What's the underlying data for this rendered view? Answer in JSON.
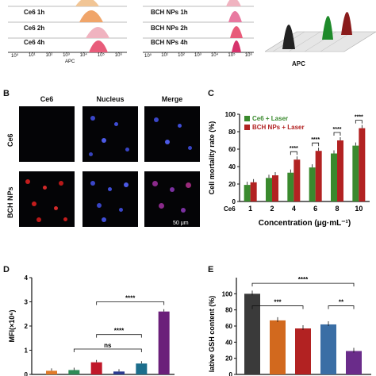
{
  "panel_A": {
    "hist1_labels": [
      "Ce6 1h",
      "Ce6 2h",
      "Ce6 4h"
    ],
    "hist2_labels": [
      "BCH NPs 1h",
      "BCH NPs 2h",
      "BCH NPs 4h"
    ],
    "x_ticks": [
      "10⁰",
      "10¹",
      "10²",
      "10³",
      "10⁴",
      "10⁵",
      "10⁶"
    ],
    "xlabel_small": "APC",
    "xlabel_3d": "APC",
    "colors": [
      "#f1c595",
      "#f0a56a",
      "#e85c7a",
      "#222222",
      "#1e8a2a",
      "#8a1b1b"
    ]
  },
  "panel_B": {
    "label": "B",
    "col_titles": [
      "Ce6",
      "Nucleus",
      "Merge"
    ],
    "row_labels": [
      "Ce6",
      "BCH NPs"
    ],
    "scale_bar": "50 μm"
  },
  "chart_data": [
    {
      "panel": "C",
      "type": "bar",
      "ylabel": "Cell mortality rate (%)",
      "xlabel": "Concentration (μg·mL⁻¹)",
      "x_prefix": "Ce6",
      "categories": [
        "1",
        "2",
        "4",
        "6",
        "8",
        "10"
      ],
      "ylim": [
        0,
        100
      ],
      "yticks": [
        0,
        20,
        40,
        60,
        80,
        100
      ],
      "series": [
        {
          "name": "Ce6 + Laser",
          "color": "#3a8a2e",
          "values": [
            19,
            27,
            33,
            39,
            55,
            64
          ]
        },
        {
          "name": "BCH NPs + Laser",
          "color": "#b22222",
          "values": [
            22,
            30,
            48,
            58,
            70,
            84
          ]
        }
      ],
      "significance": [
        "****",
        "****",
        "****",
        "****"
      ],
      "legend_position": "top-left"
    },
    {
      "panel": "D",
      "type": "bar",
      "ylabel": "MFI(×10⁶)",
      "ylim": [
        0,
        4
      ],
      "yticks": [
        0,
        1,
        2,
        3,
        4
      ],
      "values": [
        0.15,
        0.18,
        0.5,
        0.12,
        0.45,
        2.6
      ],
      "colors": [
        "#e07b2a",
        "#2e8b57",
        "#c0182a",
        "#2b3a8f",
        "#1c6e8c",
        "#6b1f7a"
      ],
      "significance": [
        "****",
        "****",
        "ns"
      ]
    },
    {
      "panel": "E",
      "type": "bar",
      "ylabel": "Relative GSH content (%)",
      "ylabel_visible": "lative GSH content (%)",
      "ylim": [
        0,
        120
      ],
      "yticks": [
        0,
        20,
        40,
        60,
        80,
        100
      ],
      "values": [
        100,
        67,
        57,
        62,
        29
      ],
      "colors": [
        "#3a3a3a",
        "#d2691e",
        "#b22222",
        "#3a6ea5",
        "#6a2c8a"
      ],
      "significance": [
        "****",
        "***",
        "**"
      ]
    }
  ],
  "labels": {
    "C": "C",
    "D": "D",
    "E": "E"
  }
}
